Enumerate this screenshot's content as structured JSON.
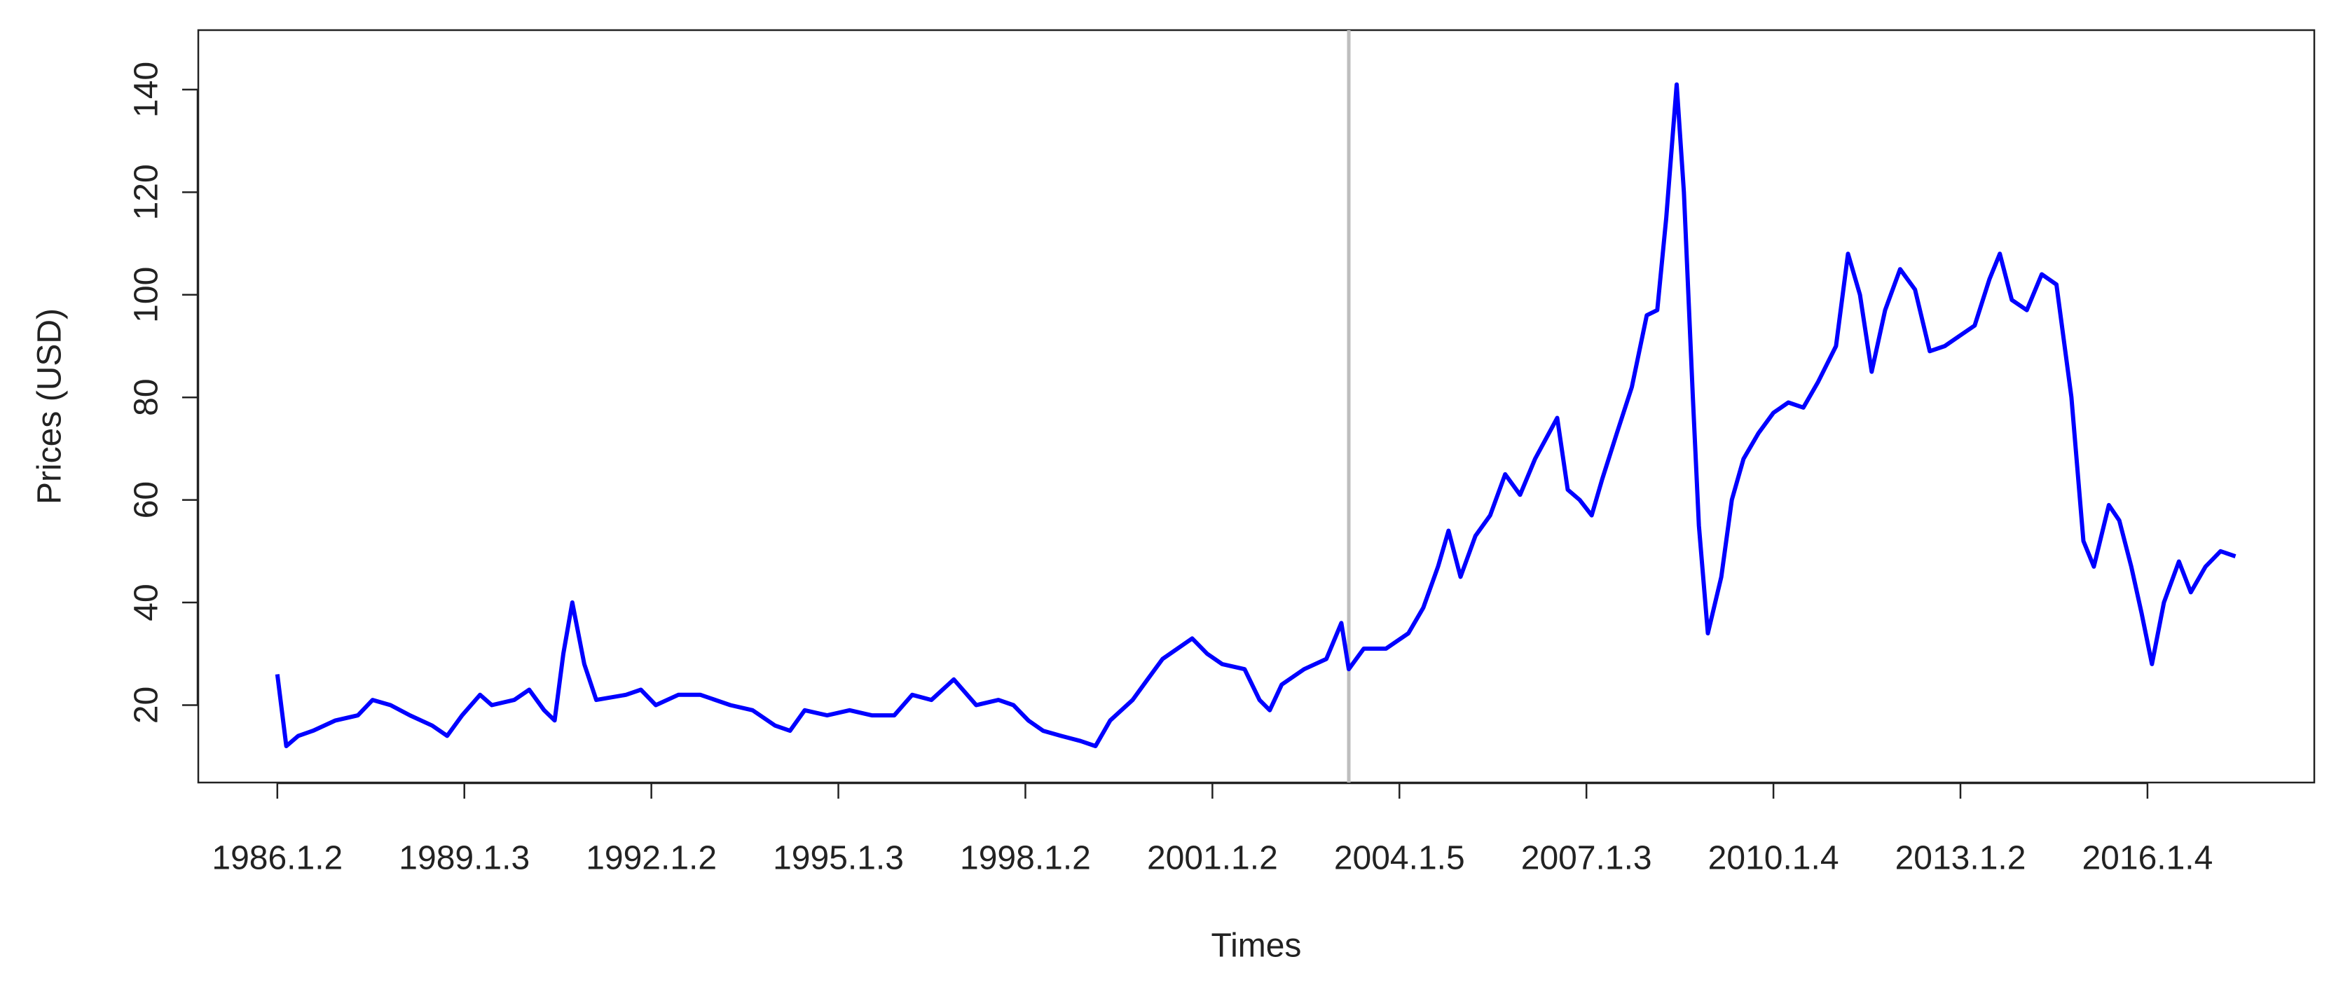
{
  "chart_data": {
    "type": "line",
    "xlabel": "Times",
    "ylabel": "Prices (USD)",
    "x": [
      0,
      36,
      84,
      143,
      233,
      323,
      382,
      454,
      532,
      621,
      681,
      741,
      813,
      860,
      950,
      1010,
      1070,
      1112,
      1147,
      1183,
      1231,
      1279,
      1398,
      1458,
      1518,
      1608,
      1697,
      1817,
      1906,
      1996,
      2056,
      2115,
      2205,
      2295,
      2384,
      2474,
      2546,
      2623,
      2713,
      2803,
      2892,
      2952,
      3012,
      3071,
      3143,
      3221,
      3281,
      3340,
      3430,
      3490,
      3550,
      3610,
      3669,
      3729,
      3789,
      3879,
      3939,
      3980,
      4028,
      4118,
      4207,
      4267,
      4297,
      4357,
      4446,
      4536,
      4596,
      4655,
      4697,
      4745,
      4805,
      4864,
      4924,
      4984,
      5044,
      5133,
      5175,
      5223,
      5271,
      5313,
      5372,
      5432,
      5492,
      5534,
      5570,
      5612,
      5641,
      5677,
      5701,
      5737,
      5791,
      5833,
      5880,
      5940,
      6000,
      6060,
      6120,
      6179,
      6251,
      6299,
      6347,
      6394,
      6448,
      6508,
      6568,
      6627,
      6687,
      6747,
      6807,
      6866,
      6908,
      6956,
      7016,
      7076,
      7135,
      7195,
      7243,
      7285,
      7345,
      7387,
      7435,
      7476,
      7518,
      7566,
      7626,
      7674,
      7733,
      7793,
      7853
    ],
    "values": [
      26,
      12,
      14,
      15,
      17,
      18,
      21,
      20,
      18,
      16,
      14,
      18,
      22,
      20,
      21,
      23,
      19,
      17,
      30,
      40,
      28,
      21,
      22,
      23,
      20,
      22,
      22,
      20,
      19,
      16,
      15,
      19,
      18,
      19,
      18,
      18,
      22,
      21,
      25,
      20,
      21,
      20,
      17,
      15,
      14,
      13,
      12,
      17,
      21,
      25,
      29,
      31,
      33,
      30,
      28,
      27,
      21,
      19,
      24,
      27,
      29,
      36,
      27,
      31,
      31,
      34,
      39,
      47,
      54,
      45,
      53,
      57,
      65,
      61,
      68,
      76,
      62,
      60,
      57,
      64,
      73,
      82,
      96,
      97,
      115,
      141,
      120,
      80,
      55,
      34,
      45,
      60,
      68,
      73,
      77,
      79,
      78,
      83,
      90,
      108,
      100,
      85,
      97,
      105,
      101,
      89,
      90,
      92,
      94,
      103,
      108,
      99,
      97,
      104,
      102,
      80,
      52,
      47,
      59,
      56,
      47,
      38,
      28,
      40,
      48,
      42,
      47,
      50,
      49
    ],
    "color": "#0000ff",
    "vline_x": 4297,
    "vline_color": "#bebebe",
    "xlim": [
      -317,
      8169
    ],
    "xticks": [
      {
        "value": 0,
        "label": "1986.1.2"
      },
      {
        "value": 750,
        "label": "1989.1.3"
      },
      {
        "value": 1500,
        "label": "1992.1.2"
      },
      {
        "value": 2250,
        "label": "1995.1.3"
      },
      {
        "value": 3000,
        "label": "1998.1.2"
      },
      {
        "value": 3750,
        "label": "2001.1.2"
      },
      {
        "value": 4500,
        "label": "2004.1.5"
      },
      {
        "value": 5250,
        "label": "2007.1.3"
      },
      {
        "value": 6000,
        "label": "2010.1.4"
      },
      {
        "value": 6750,
        "label": "2013.1.2"
      },
      {
        "value": 7500,
        "label": "2016.1.4"
      }
    ],
    "ylim": [
      4.9,
      151.6
    ],
    "yticks": [
      20,
      40,
      60,
      80,
      100,
      120,
      140
    ]
  }
}
